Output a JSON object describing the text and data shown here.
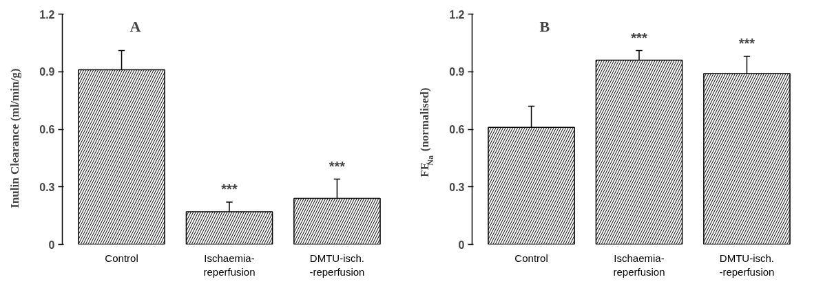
{
  "chart_data": [
    {
      "type": "bar",
      "title": "A",
      "ylabel": "Inulin Clearance (ml/min/g)",
      "categories": [
        "Control",
        "Ischaemia-\nreperfusion",
        "DMTU-isch.\n-reperfusion"
      ],
      "values": [
        0.91,
        0.17,
        0.24
      ],
      "color": "#000000",
      "errors": [
        [
          0.91,
          1.01
        ],
        [
          0.17,
          0.22
        ],
        [
          0.24,
          0.34
        ]
      ],
      "ylim": [
        0,
        1.2
      ],
      "yticks": [
        0,
        0.3,
        0.6,
        0.9,
        1.2
      ],
      "annotations": [
        {
          "text": "***",
          "x": "Ischaemia-\nreperfusion",
          "y": 0.22
        },
        {
          "text": "***",
          "x": "DMTU-isch.\n-reperfusion",
          "y": 0.34
        }
      ]
    },
    {
      "type": "bar",
      "title": "B",
      "ylabel": "FE$_{Na}$ (normalised)",
      "categories": [
        "Control",
        "Ischaemia-\nreperfusion",
        "DMTU-isch.\n-reperfusion"
      ],
      "values": [
        0.61,
        0.96,
        0.89
      ],
      "color": "#000000",
      "errors": [
        [
          0.61,
          0.72
        ],
        [
          0.96,
          1.01
        ],
        [
          0.89,
          0.98
        ]
      ],
      "ylim": [
        0,
        1.2
      ],
      "yticks": [
        0,
        0.3,
        0.6,
        0.9,
        1.2
      ],
      "annotations": [
        {
          "text": "***",
          "x": "Ischaemia-\nreperfusion",
          "y": 1.01
        },
        {
          "text": "***",
          "x": "DMTU-isch.\n-reperfusion",
          "y": 0.98
        }
      ]
    }
  ]
}
